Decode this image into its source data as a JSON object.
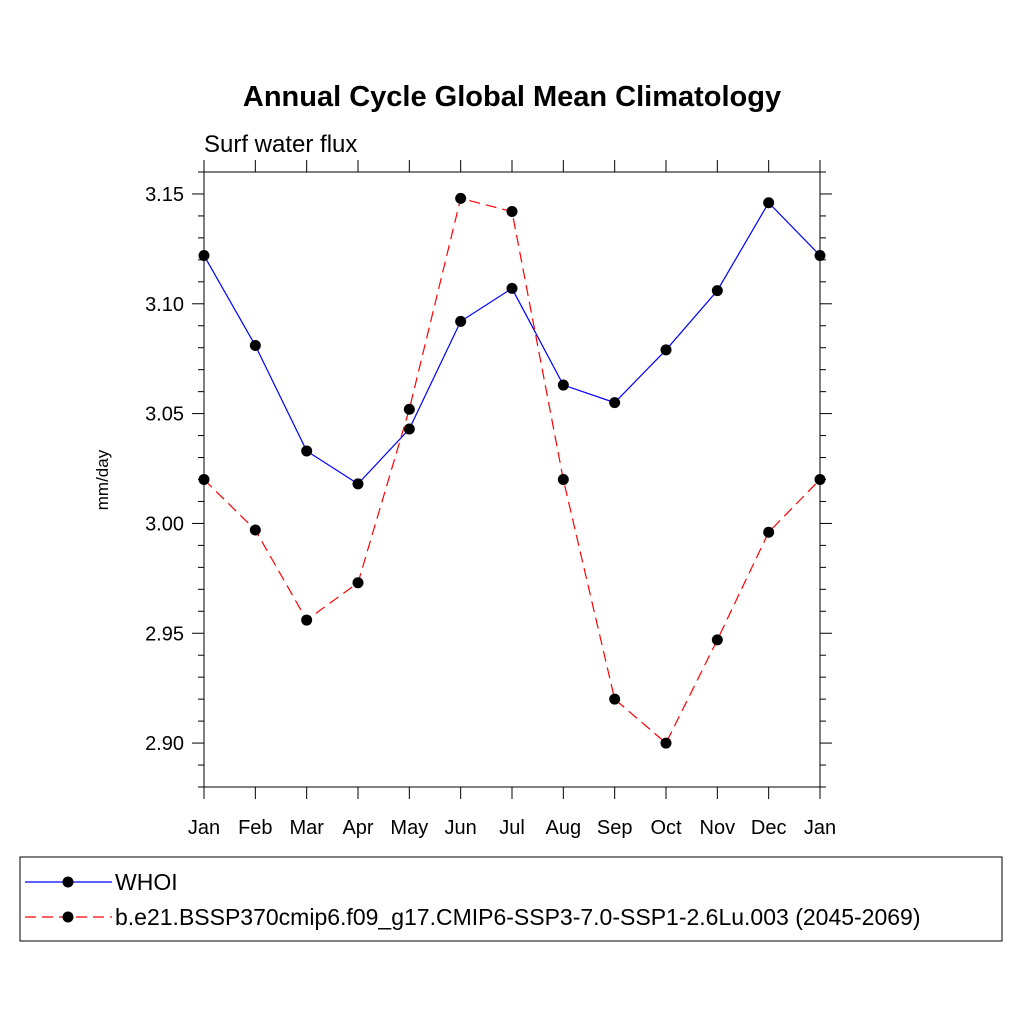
{
  "chart_data": {
    "type": "line",
    "title": "Annual Cycle Global Mean Climatology",
    "subtitle": "Surf water flux",
    "xlabel": "",
    "ylabel": "mm/day",
    "categories": [
      "Jan",
      "Feb",
      "Mar",
      "Apr",
      "May",
      "Jun",
      "Jul",
      "Aug",
      "Sep",
      "Oct",
      "Nov",
      "Dec",
      "Jan"
    ],
    "ylim": [
      2.88,
      3.16
    ],
    "yticks": [
      "3.15",
      "3.10",
      "3.05",
      "3.00",
      "2.95",
      "2.90"
    ],
    "grid": false,
    "legend_position": "bottom",
    "series": [
      {
        "name": "WHOI",
        "color": "#0000ff",
        "line_style": "solid",
        "marker": "filled-circle",
        "values": [
          3.122,
          3.081,
          3.033,
          3.018,
          3.043,
          3.092,
          3.107,
          3.063,
          3.055,
          3.079,
          3.106,
          3.146,
          3.122
        ]
      },
      {
        "name": "b.e21.BSSP370cmip6.f09_g17.CMIP6-SSP3-7.0-SSP1-2.6Lu.003 (2045-2069)",
        "color": "#ff0000",
        "line_style": "dashed",
        "marker": "filled-circle",
        "values": [
          3.02,
          2.997,
          2.956,
          2.973,
          3.052,
          3.148,
          3.142,
          3.02,
          2.92,
          2.9,
          2.947,
          2.996,
          3.02
        ]
      }
    ]
  }
}
